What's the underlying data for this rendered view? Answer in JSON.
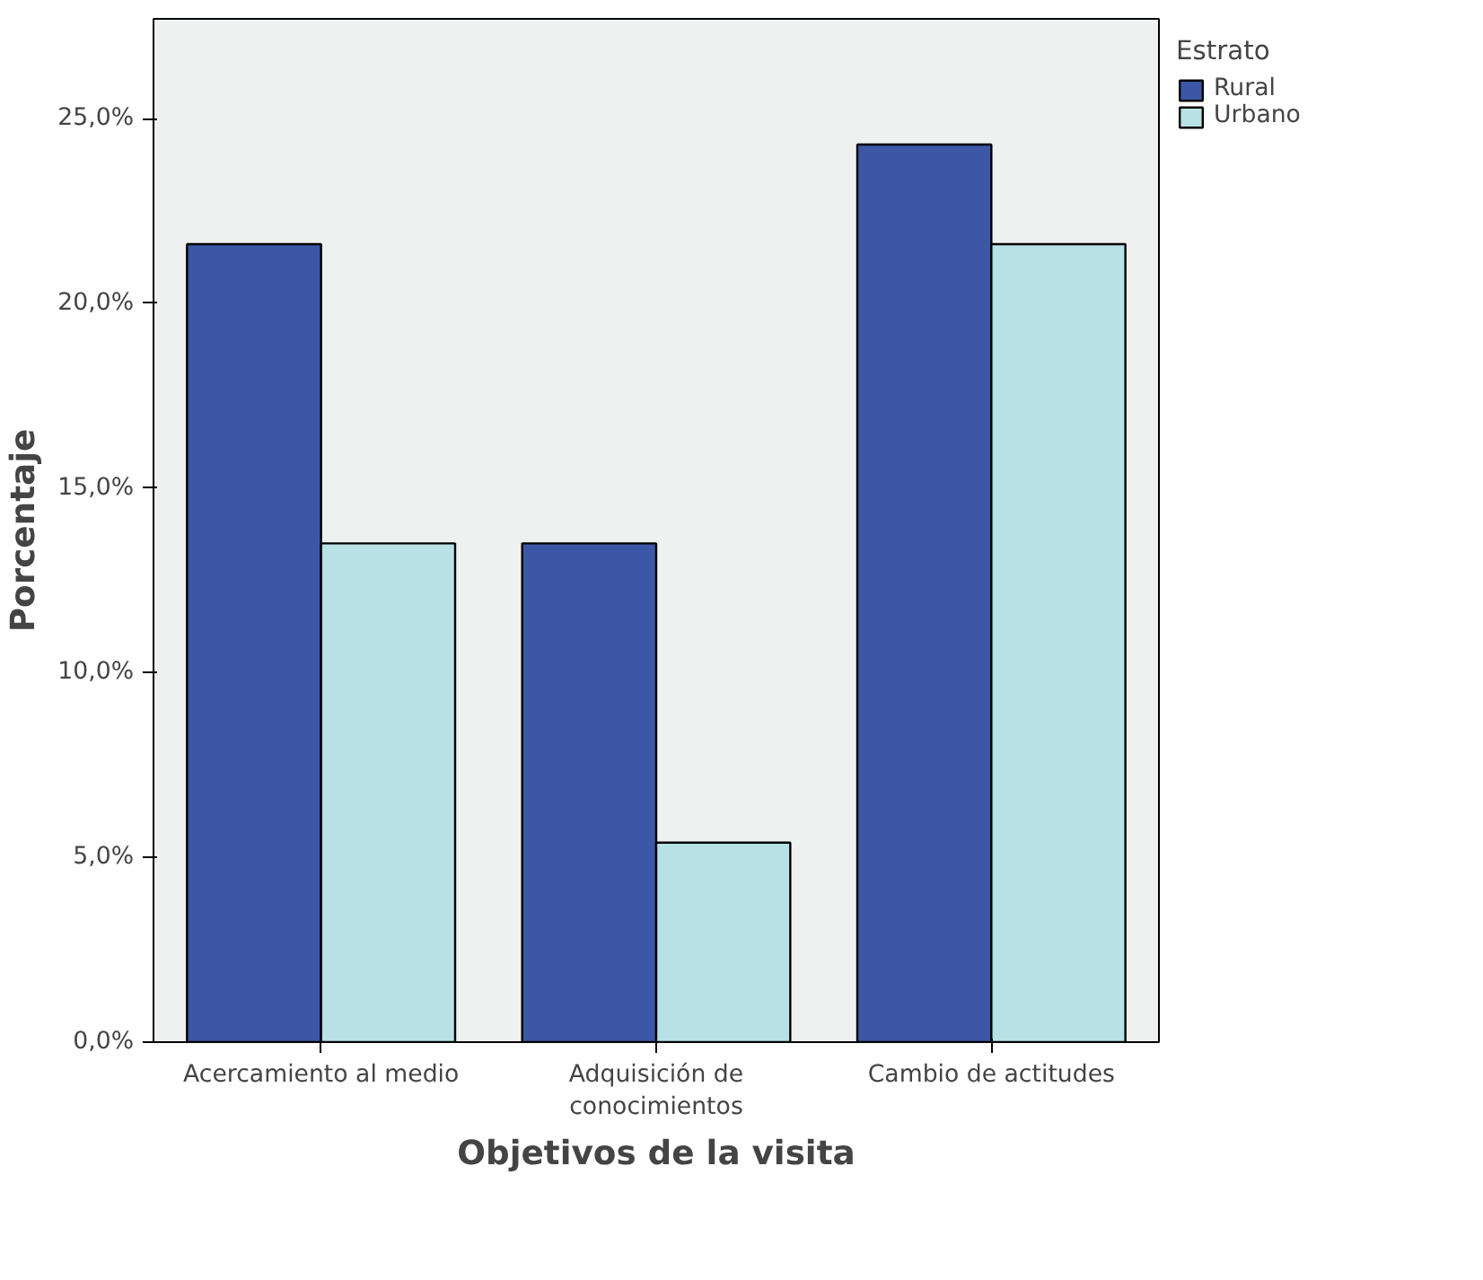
{
  "chart_data": {
    "type": "bar",
    "xlabel": "Objetivos de la visita",
    "ylabel": "Porcentaje",
    "legend_title": "Estrato",
    "legend": "top right",
    "grid": false,
    "categories": [
      "Acercamiento al medio",
      "Adquisición de\nconocimientos",
      "Cambio de actitudes"
    ],
    "series": [
      {
        "name": "Rural",
        "color": "#3c57a6",
        "values": [
          21.6,
          13.5,
          24.3
        ]
      },
      {
        "name": "Urbano",
        "color": "#b8e1e5",
        "values": [
          13.5,
          5.4,
          21.6
        ]
      }
    ],
    "ylim": [
      0,
      27.7
    ],
    "yticks": [
      {
        "value": 0,
        "label": "0,0%"
      },
      {
        "value": 5,
        "label": "5,0%"
      },
      {
        "value": 10,
        "label": "10,0%"
      },
      {
        "value": 15,
        "label": "15,0%"
      },
      {
        "value": 20,
        "label": "20,0%"
      },
      {
        "value": 25,
        "label": "25,0%"
      }
    ]
  }
}
